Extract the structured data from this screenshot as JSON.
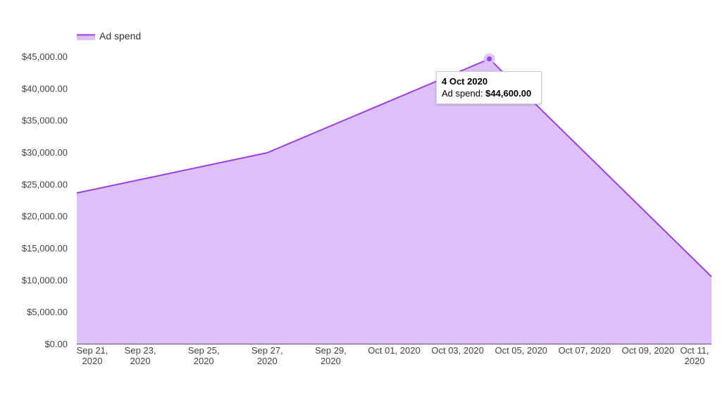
{
  "chart_data": {
    "type": "area",
    "legend": {
      "position": "top-left",
      "entries": [
        "Ad spend"
      ]
    },
    "x": [
      "2020-09-21",
      "2020-09-27",
      "2020-10-04",
      "2020-10-11"
    ],
    "series": [
      {
        "name": "Ad spend",
        "values": [
          23600,
          29900,
          44600,
          10500
        ]
      }
    ],
    "xticks": [
      {
        "date": "2020-09-21",
        "line1": "Sep 21,",
        "line2": "2020"
      },
      {
        "date": "2020-09-23",
        "line1": "Sep 23,",
        "line2": "2020"
      },
      {
        "date": "2020-09-25",
        "line1": "Sep 25,",
        "line2": "2020"
      },
      {
        "date": "2020-09-27",
        "line1": "Sep 27,",
        "line2": "2020"
      },
      {
        "date": "2020-09-29",
        "line1": "Sep 29,",
        "line2": "2020"
      },
      {
        "date": "2020-10-01",
        "line1": "Oct 01, 2020",
        "line2": ""
      },
      {
        "date": "2020-10-03",
        "line1": "Oct 03, 2020",
        "line2": ""
      },
      {
        "date": "2020-10-05",
        "line1": "Oct 05, 2020",
        "line2": ""
      },
      {
        "date": "2020-10-07",
        "line1": "Oct 07, 2020",
        "line2": ""
      },
      {
        "date": "2020-10-09",
        "line1": "Oct 09, 2020",
        "line2": ""
      },
      {
        "date": "2020-10-11",
        "line1": "Oct 11,",
        "line2": "2020"
      }
    ],
    "xlim": [
      "2020-09-21",
      "2020-10-11"
    ],
    "ylim": [
      0,
      45000
    ],
    "yticks": [
      0,
      5000,
      10000,
      15000,
      20000,
      25000,
      30000,
      35000,
      40000,
      45000
    ],
    "ytick_labels": [
      "$0.00",
      "$5,000.00",
      "$10,000.00",
      "$15,000.00",
      "$20,000.00",
      "$25,000.00",
      "$30,000.00",
      "$35,000.00",
      "$40,000.00",
      "$45,000.00"
    ],
    "grid": false,
    "colors": {
      "line": "#9b3fe4",
      "fill": "#dcc0f7"
    },
    "tooltip": {
      "date": "4 Oct 2020",
      "series_label": "Ad spend:",
      "value": "$44,600.00",
      "x": "2020-10-04",
      "y": 44600
    }
  }
}
